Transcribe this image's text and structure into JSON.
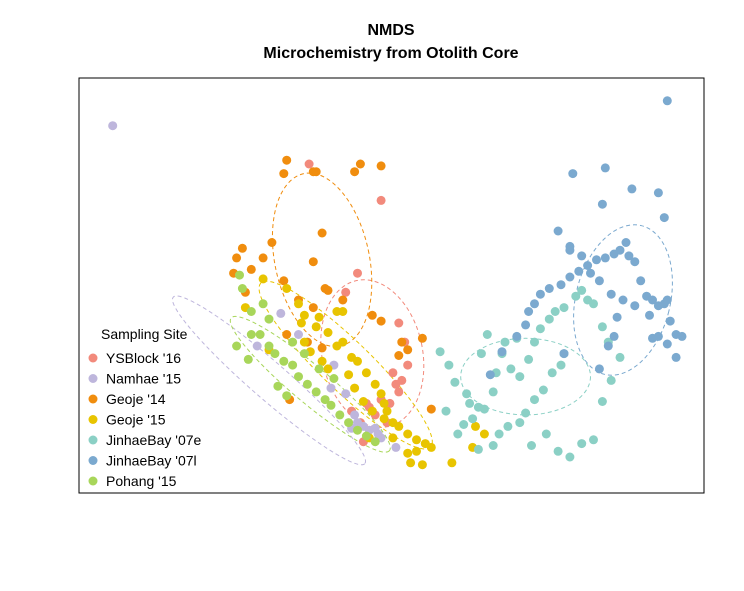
{
  "chart_data": {
    "type": "scatter",
    "title": "NMDS",
    "subtitle": "Microchemistry from Otolith Core",
    "xlabel": "",
    "ylabel": "",
    "xlim": [
      0,
      100
    ],
    "ylim": [
      0,
      100
    ],
    "grid": false,
    "legend": {
      "title": "Sampling Site",
      "placement": "bottom-left"
    },
    "series": [
      {
        "name": "YSBlock '16",
        "color": "#F28A7C",
        "points": [
          [
            36.8,
            82.5
          ],
          [
            49.0,
            73.0
          ],
          [
            45.0,
            54.0
          ],
          [
            43.0,
            49.0
          ],
          [
            52.0,
            41.0
          ],
          [
            53.0,
            36.0
          ],
          [
            53.5,
            30.0
          ],
          [
            52.5,
            26.0
          ],
          [
            52.0,
            23.0
          ],
          [
            51.5,
            25.0
          ],
          [
            50.5,
            20.0
          ],
          [
            50.0,
            15.0
          ],
          [
            49.0,
            21.0
          ],
          [
            48.0,
            17.0
          ],
          [
            47.0,
            19.0
          ],
          [
            46.5,
            20.0
          ],
          [
            46.0,
            10.0
          ],
          [
            45.5,
            15.0
          ],
          [
            44.0,
            18.0
          ],
          [
            51.0,
            28.0
          ]
        ],
        "ellipse": {
          "cx": 47.5,
          "cy": 33.0,
          "rx": 8.5,
          "ry": 19.5,
          "angle": -12
        }
      },
      {
        "name": "Namhae '15",
        "color": "#BEB6DC",
        "points": [
          [
            3.5,
            92.5
          ],
          [
            32.0,
            43.5
          ],
          [
            28.0,
            35.0
          ],
          [
            35.0,
            38.0
          ],
          [
            41.0,
            30.0
          ],
          [
            43.0,
            22.5
          ],
          [
            44.0,
            13.5
          ],
          [
            44.5,
            17.0
          ],
          [
            45.0,
            15.0
          ],
          [
            46.0,
            14.0
          ],
          [
            47.0,
            13.0
          ],
          [
            48.0,
            13.5
          ],
          [
            48.5,
            12.0
          ],
          [
            49.0,
            11.0
          ],
          [
            51.5,
            8.5
          ],
          [
            40.5,
            24.0
          ]
        ],
        "ellipse": {
          "cx": 30.0,
          "cy": 26.0,
          "rx": 21.5,
          "ry": 4.8,
          "angle": 41
        }
      },
      {
        "name": "Geoje '14",
        "color": "#F08D0E",
        "points": [
          [
            38.0,
            80.5
          ],
          [
            33.0,
            83.5
          ],
          [
            49.0,
            82.0
          ],
          [
            32.5,
            80.0
          ],
          [
            45.5,
            82.5
          ],
          [
            37.5,
            80.5
          ],
          [
            44.5,
            80.5
          ],
          [
            42.5,
            47.0
          ],
          [
            39.0,
            64.5
          ],
          [
            37.5,
            57.0
          ],
          [
            35.0,
            47.0
          ],
          [
            33.0,
            38.0
          ],
          [
            30.5,
            62.0
          ],
          [
            29.0,
            58.0
          ],
          [
            32.5,
            52.0
          ],
          [
            27.0,
            55.0
          ],
          [
            25.5,
            60.5
          ],
          [
            24.5,
            58.0
          ],
          [
            24.0,
            54.0
          ],
          [
            26.0,
            49.0
          ],
          [
            39.5,
            50.0
          ],
          [
            40.0,
            49.5
          ],
          [
            37.5,
            45.0
          ],
          [
            47.5,
            43.0
          ],
          [
            49.0,
            41.5
          ],
          [
            52.5,
            36.0
          ],
          [
            53.5,
            34.0
          ],
          [
            36.5,
            36.0
          ],
          [
            39.0,
            34.5
          ],
          [
            56.0,
            37.0
          ],
          [
            57.5,
            18.5
          ],
          [
            33.5,
            21.0
          ],
          [
            52.0,
            32.5
          ]
        ],
        "ellipse": {
          "cx": 39.0,
          "cy": 57.5,
          "rx": 8.0,
          "ry": 23.0,
          "angle": -12
        }
      },
      {
        "name": "Geoje '15",
        "color": "#E8C400",
        "points": [
          [
            29.0,
            52.5
          ],
          [
            33.0,
            50.0
          ],
          [
            35.0,
            46.0
          ],
          [
            36.0,
            43.0
          ],
          [
            38.0,
            40.0
          ],
          [
            40.0,
            38.5
          ],
          [
            41.5,
            35.0
          ],
          [
            42.5,
            36.0
          ],
          [
            44.0,
            32.0
          ],
          [
            45.0,
            31.0
          ],
          [
            46.5,
            28.0
          ],
          [
            48.0,
            25.0
          ],
          [
            49.0,
            22.5
          ],
          [
            49.5,
            20.0
          ],
          [
            50.0,
            18.0
          ],
          [
            51.0,
            15.0
          ],
          [
            52.0,
            14.0
          ],
          [
            53.5,
            12.0
          ],
          [
            55.0,
            10.5
          ],
          [
            56.5,
            9.5
          ],
          [
            57.5,
            8.5
          ],
          [
            42.5,
            44.0
          ],
          [
            41.5,
            44.0
          ],
          [
            38.5,
            42.5
          ],
          [
            35.5,
            41.0
          ],
          [
            36.0,
            36.0
          ],
          [
            37.0,
            33.5
          ],
          [
            39.0,
            31.0
          ],
          [
            40.0,
            29.0
          ],
          [
            43.5,
            27.5
          ],
          [
            44.5,
            24.0
          ],
          [
            46.0,
            20.5
          ],
          [
            47.5,
            18.0
          ],
          [
            49.5,
            16.0
          ],
          [
            51.0,
            11.0
          ],
          [
            53.5,
            7.0
          ],
          [
            55.0,
            7.5
          ],
          [
            54.0,
            4.5
          ],
          [
            56.0,
            4.0
          ],
          [
            61.0,
            4.5
          ],
          [
            65.0,
            14.0
          ],
          [
            66.5,
            12.0
          ],
          [
            64.5,
            8.5
          ],
          [
            47.0,
            11.0
          ],
          [
            30.0,
            34.0
          ],
          [
            26.0,
            45.0
          ]
        ],
        "ellipse": {
          "cx": 43.0,
          "cy": 30.0,
          "rx": 20.0,
          "ry": 6.5,
          "angle": 44
        }
      },
      {
        "name": "JinhaeBay '07e",
        "color": "#8BD0C5",
        "points": [
          [
            59.0,
            33.5
          ],
          [
            60.5,
            30.0
          ],
          [
            61.5,
            25.5
          ],
          [
            63.5,
            22.5
          ],
          [
            64.0,
            20.0
          ],
          [
            65.5,
            19.0
          ],
          [
            66.5,
            18.5
          ],
          [
            68.0,
            23.0
          ],
          [
            68.5,
            28.0
          ],
          [
            69.5,
            33.0
          ],
          [
            71.0,
            29.0
          ],
          [
            72.5,
            27.0
          ],
          [
            74.0,
            31.5
          ],
          [
            75.0,
            36.0
          ],
          [
            76.0,
            39.5
          ],
          [
            77.5,
            42.0
          ],
          [
            78.5,
            44.0
          ],
          [
            80.0,
            45.0
          ],
          [
            82.0,
            48.0
          ],
          [
            83.0,
            49.5
          ],
          [
            84.0,
            47.0
          ],
          [
            85.0,
            46.0
          ],
          [
            86.5,
            40.0
          ],
          [
            87.5,
            36.0
          ],
          [
            80.0,
            33.0
          ],
          [
            79.5,
            30.0
          ],
          [
            78.0,
            28.0
          ],
          [
            76.5,
            23.5
          ],
          [
            75.0,
            21.0
          ],
          [
            73.5,
            17.5
          ],
          [
            72.5,
            15.0
          ],
          [
            70.5,
            14.0
          ],
          [
            69.0,
            12.0
          ],
          [
            68.0,
            9.0
          ],
          [
            65.5,
            8.0
          ],
          [
            64.5,
            16.0
          ],
          [
            63.0,
            14.5
          ],
          [
            62.0,
            12.0
          ],
          [
            60.0,
            18.0
          ],
          [
            66.0,
            33.0
          ],
          [
            67.0,
            38.0
          ],
          [
            70.0,
            36.0
          ],
          [
            72.0,
            37.0
          ],
          [
            74.5,
            9.0
          ],
          [
            77.0,
            12.0
          ],
          [
            79.0,
            7.5
          ],
          [
            81.0,
            6.0
          ],
          [
            83.0,
            9.5
          ],
          [
            85.0,
            10.5
          ],
          [
            86.5,
            20.5
          ],
          [
            88.0,
            26.0
          ],
          [
            89.5,
            32.0
          ]
        ],
        "ellipse": {
          "cx": 73.5,
          "cy": 27.0,
          "rx": 11.0,
          "ry": 10.0,
          "angle": 0
        }
      },
      {
        "name": "JinhaeBay '07l",
        "color": "#7BA9CF",
        "points": [
          [
            67.5,
            27.5
          ],
          [
            69.5,
            33.5
          ],
          [
            72.0,
            37.5
          ],
          [
            73.5,
            40.5
          ],
          [
            74.0,
            44.0
          ],
          [
            75.0,
            46.0
          ],
          [
            76.0,
            48.5
          ],
          [
            77.5,
            50.0
          ],
          [
            79.5,
            51.0
          ],
          [
            81.0,
            53.0
          ],
          [
            82.5,
            54.5
          ],
          [
            84.0,
            56.0
          ],
          [
            85.5,
            57.5
          ],
          [
            87.0,
            58.0
          ],
          [
            88.5,
            59.0
          ],
          [
            89.5,
            60.0
          ],
          [
            91.0,
            58.5
          ],
          [
            92.0,
            57.0
          ],
          [
            93.0,
            52.0
          ],
          [
            94.0,
            48.0
          ],
          [
            95.0,
            47.0
          ],
          [
            96.0,
            45.5
          ],
          [
            97.0,
            46.0
          ],
          [
            98.0,
            41.5
          ],
          [
            99.0,
            38.0
          ],
          [
            100.0,
            37.5
          ],
          [
            79.0,
            65.0
          ],
          [
            81.0,
            61.0
          ],
          [
            83.0,
            58.5
          ],
          [
            84.5,
            54.0
          ],
          [
            86.0,
            52.0
          ],
          [
            88.0,
            48.5
          ],
          [
            90.0,
            47.0
          ],
          [
            92.0,
            45.5
          ],
          [
            94.5,
            43.0
          ],
          [
            80.0,
            33.0
          ],
          [
            86.0,
            29.0
          ],
          [
            87.5,
            35.0
          ],
          [
            88.5,
            37.5
          ],
          [
            89.0,
            42.5
          ],
          [
            95.0,
            37.0
          ],
          [
            96.0,
            37.5
          ],
          [
            97.5,
            35.5
          ],
          [
            99.0,
            32.0
          ],
          [
            90.5,
            62.0
          ],
          [
            97.0,
            68.5
          ],
          [
            91.5,
            76.0
          ],
          [
            96.0,
            75.0
          ],
          [
            81.5,
            80.0
          ],
          [
            86.5,
            72.0
          ],
          [
            97.5,
            99.0
          ],
          [
            87.0,
            81.5
          ],
          [
            81.0,
            60.0
          ],
          [
            97.5,
            47.0
          ]
        ],
        "ellipse": {
          "cx": 90.0,
          "cy": 47.0,
          "rx": 8.0,
          "ry": 20.0,
          "angle": 14
        }
      },
      {
        "name": "Pohang '15",
        "color": "#A8D65A",
        "points": [
          [
            25.0,
            53.5
          ],
          [
            25.5,
            50.0
          ],
          [
            27.0,
            44.0
          ],
          [
            28.5,
            38.0
          ],
          [
            30.0,
            35.0
          ],
          [
            31.0,
            33.0
          ],
          [
            32.5,
            31.0
          ],
          [
            34.0,
            30.0
          ],
          [
            35.0,
            27.0
          ],
          [
            36.5,
            25.0
          ],
          [
            38.0,
            23.0
          ],
          [
            39.5,
            21.0
          ],
          [
            40.5,
            19.5
          ],
          [
            42.0,
            17.0
          ],
          [
            43.5,
            15.0
          ],
          [
            45.0,
            13.0
          ],
          [
            46.5,
            11.5
          ],
          [
            48.0,
            10.0
          ],
          [
            34.0,
            36.0
          ],
          [
            30.0,
            42.0
          ],
          [
            29.0,
            46.0
          ],
          [
            27.0,
            38.0
          ],
          [
            36.0,
            33.0
          ],
          [
            41.0,
            26.5
          ],
          [
            38.5,
            29.0
          ],
          [
            33.0,
            22.0
          ],
          [
            31.5,
            24.5
          ],
          [
            26.5,
            31.5
          ],
          [
            24.5,
            35.0
          ]
        ],
        "ellipse": {
          "cx": 37.0,
          "cy": 25.0,
          "rx": 17.5,
          "ry": 4.8,
          "angle": 40
        }
      }
    ]
  }
}
